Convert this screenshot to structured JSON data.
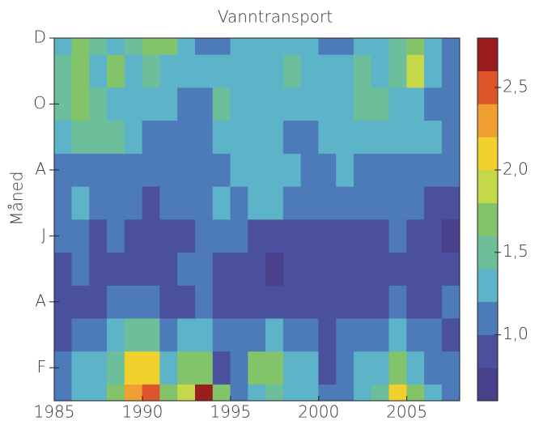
{
  "chart_data": {
    "type": "contour",
    "title": "Vanntransport",
    "y_label": "Måned",
    "x": [
      1985,
      1986,
      1987,
      1988,
      1989,
      1990,
      1991,
      1992,
      1993,
      1994,
      1995,
      1996,
      1997,
      1998,
      1999,
      2000,
      2001,
      2002,
      2003,
      2004,
      2005,
      2006,
      2007
    ],
    "y": [
      1,
      2,
      3,
      4,
      5,
      6,
      7,
      8,
      9,
      10,
      11,
      12
    ],
    "z": [
      [
        1.1,
        1.2,
        1.3,
        1.6,
        2.3,
        2.5,
        1.6,
        1.9,
        2.6,
        1.6,
        1.1,
        1.3,
        1.4,
        1.3,
        1.2,
        1.0,
        1.1,
        1.3,
        1.5,
        2.0,
        1.7,
        1.3,
        1.1
      ],
      [
        1.05,
        1.3,
        1.2,
        1.5,
        2.0,
        2.1,
        1.3,
        1.6,
        1.7,
        0.95,
        1.1,
        1.6,
        1.75,
        1.3,
        1.2,
        0.95,
        1.1,
        1.3,
        1.3,
        1.6,
        1.3,
        1.1,
        1.0
      ],
      [
        0.9,
        1.1,
        1.0,
        1.2,
        1.4,
        1.4,
        1.1,
        1.2,
        1.3,
        1.0,
        1.0,
        1.1,
        1.2,
        1.1,
        1.0,
        0.9,
        1.0,
        1.1,
        1.1,
        1.2,
        1.1,
        1.0,
        0.9
      ],
      [
        0.8,
        0.9,
        0.95,
        1.0,
        1.05,
        1.0,
        0.95,
        0.95,
        1.0,
        0.95,
        0.9,
        0.95,
        0.9,
        0.95,
        0.9,
        0.8,
        0.9,
        0.95,
        0.95,
        1.0,
        0.95,
        0.9,
        1.0
      ],
      [
        0.95,
        1.05,
        0.9,
        0.95,
        0.9,
        0.9,
        0.95,
        1.05,
        1.0,
        0.9,
        0.9,
        0.85,
        0.75,
        0.85,
        0.9,
        0.85,
        0.9,
        0.9,
        0.95,
        0.95,
        0.9,
        0.85,
        0.9
      ],
      [
        1.05,
        1.0,
        0.95,
        1.0,
        0.9,
        0.9,
        0.9,
        0.95,
        1.0,
        1.05,
        1.0,
        0.9,
        0.85,
        0.9,
        0.95,
        0.85,
        0.9,
        0.95,
        0.95,
        1.0,
        0.95,
        0.85,
        0.75
      ],
      [
        1.1,
        1.2,
        1.1,
        1.0,
        1.0,
        0.95,
        1.0,
        1.05,
        1.1,
        1.25,
        1.1,
        1.2,
        1.25,
        1.1,
        1.05,
        1.0,
        1.0,
        1.05,
        1.0,
        1.0,
        1.05,
        0.95,
        0.85
      ],
      [
        1.1,
        1.1,
        1.05,
        1.1,
        1.1,
        1.05,
        1.1,
        1.1,
        1.1,
        1.15,
        1.25,
        1.3,
        1.3,
        1.2,
        1.1,
        1.15,
        1.2,
        1.1,
        1.1,
        1.1,
        1.1,
        1.05,
        1.0
      ],
      [
        1.2,
        1.5,
        1.5,
        1.4,
        1.2,
        1.1,
        1.1,
        1.05,
        1.1,
        1.3,
        1.3,
        1.35,
        1.3,
        1.1,
        1.15,
        1.2,
        1.2,
        1.35,
        1.3,
        1.3,
        1.3,
        1.2,
        1.1
      ],
      [
        1.55,
        1.6,
        1.45,
        1.3,
        1.3,
        1.25,
        1.3,
        1.1,
        1.05,
        1.5,
        1.3,
        1.25,
        1.3,
        1.3,
        1.2,
        1.2,
        1.3,
        1.4,
        1.5,
        1.35,
        1.2,
        1.1,
        1.05
      ],
      [
        1.5,
        1.65,
        1.3,
        1.6,
        1.3,
        1.5,
        1.3,
        1.2,
        1.25,
        1.2,
        1.3,
        1.25,
        1.2,
        1.4,
        1.3,
        1.2,
        1.3,
        1.45,
        1.3,
        1.5,
        1.8,
        1.3,
        1.1
      ],
      [
        1.3,
        1.6,
        1.4,
        1.3,
        1.4,
        1.7,
        1.6,
        1.3,
        1.1,
        1.05,
        1.2,
        1.3,
        1.2,
        1.3,
        1.35,
        1.1,
        1.05,
        1.3,
        1.2,
        1.4,
        1.7,
        1.3,
        1.1
      ]
    ],
    "xlim": [
      1985,
      2008
    ],
    "xticks": [
      1985,
      1990,
      1995,
      2000,
      2005
    ],
    "ylim": [
      1,
      12
    ],
    "yticks": [
      {
        "value": 2,
        "label": "F"
      },
      {
        "value": 4,
        "label": "A"
      },
      {
        "value": 6,
        "label": "J"
      },
      {
        "value": 8,
        "label": "A"
      },
      {
        "value": 10,
        "label": "O"
      },
      {
        "value": 12,
        "label": "D"
      }
    ],
    "levels": [
      0.6,
      0.8,
      1.0,
      1.2,
      1.4,
      1.6,
      1.8,
      2.0,
      2.2,
      2.4,
      2.6,
      2.8
    ],
    "colors": [
      "#48408a",
      "#4a509e",
      "#4d7ab8",
      "#5db4c9",
      "#6cbf9a",
      "#83c46a",
      "#c5d84a",
      "#f0d02c",
      "#f0a030",
      "#de552b",
      "#9a1e1e"
    ],
    "clim": [
      0.6,
      2.8
    ],
    "cticks": [
      {
        "value": 1.0,
        "label": "1,0"
      },
      {
        "value": 1.5,
        "label": "1,5"
      },
      {
        "value": 2.0,
        "label": "2,0"
      },
      {
        "value": 2.5,
        "label": "2,5"
      }
    ]
  }
}
